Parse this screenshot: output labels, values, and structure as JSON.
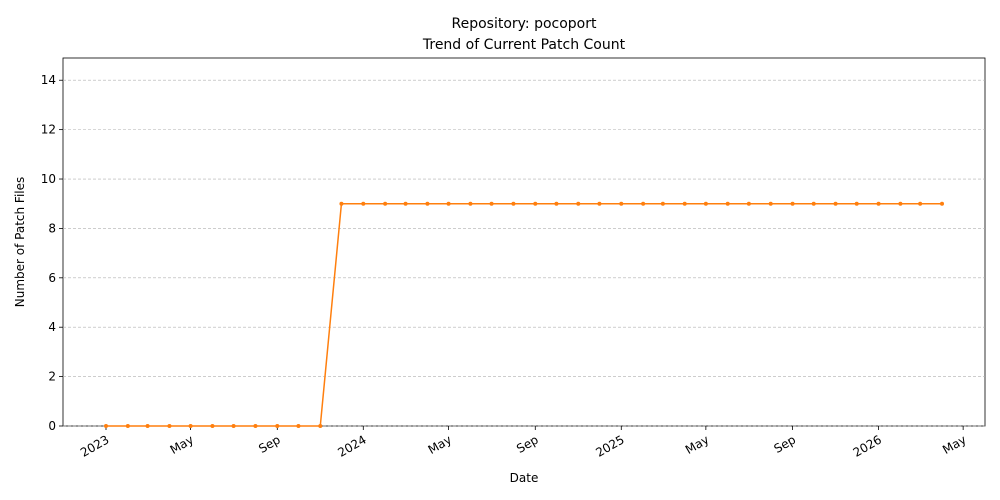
{
  "chart_data": {
    "type": "line",
    "title": "Repository: pocoport",
    "subtitle": "Trend of Current Patch Count",
    "xlabel": "Date",
    "ylabel": "Number of Patch Files",
    "color": "#ff7f0e",
    "grid": true,
    "x": [
      "2023-01",
      "2023-02",
      "2023-03",
      "2023-04",
      "2023-05",
      "2023-06",
      "2023-07",
      "2023-08",
      "2023-09",
      "2023-10",
      "2023-11",
      "2023-12",
      "2024-01",
      "2024-02",
      "2024-03",
      "2024-04",
      "2024-05",
      "2024-06",
      "2024-07",
      "2024-08",
      "2024-09",
      "2024-10",
      "2024-11",
      "2024-12",
      "2025-01",
      "2025-02",
      "2025-03",
      "2025-04",
      "2025-05",
      "2025-06",
      "2025-07",
      "2025-08",
      "2025-09",
      "2025-10",
      "2025-11",
      "2025-12",
      "2026-01",
      "2026-02",
      "2026-03",
      "2026-04"
    ],
    "values": [
      0,
      0,
      0,
      0,
      0,
      0,
      0,
      0,
      0,
      0,
      0,
      9,
      9,
      9,
      9,
      9,
      9,
      9,
      9,
      9,
      9,
      9,
      9,
      9,
      9,
      9,
      9,
      9,
      9,
      9,
      9,
      9,
      9,
      9,
      9,
      9,
      9,
      9,
      9,
      9
    ],
    "xlim": [
      "2022-11",
      "2026-06"
    ],
    "xticks": [
      {
        "value": "2023-01",
        "label": "2023"
      },
      {
        "value": "2023-05",
        "label": "May"
      },
      {
        "value": "2023-09",
        "label": "Sep"
      },
      {
        "value": "2024-01",
        "label": "2024"
      },
      {
        "value": "2024-05",
        "label": "May"
      },
      {
        "value": "2024-09",
        "label": "Sep"
      },
      {
        "value": "2025-01",
        "label": "2025"
      },
      {
        "value": "2025-05",
        "label": "May"
      },
      {
        "value": "2025-09",
        "label": "Sep"
      },
      {
        "value": "2026-01",
        "label": "2026"
      },
      {
        "value": "2026-05",
        "label": "May"
      }
    ],
    "ylim": [
      0,
      14.9
    ],
    "yticks": [
      0,
      2,
      4,
      6,
      8,
      10,
      12,
      14
    ]
  }
}
